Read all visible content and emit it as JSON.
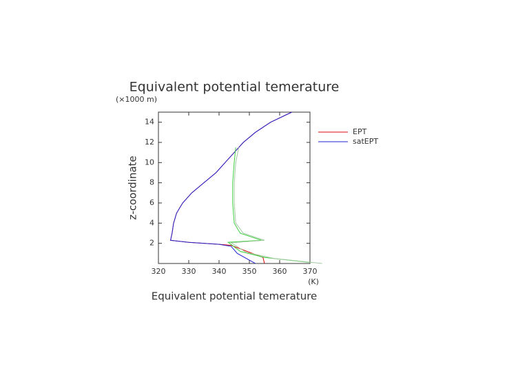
{
  "chart_data": {
    "type": "line",
    "title": "Equivalent potential temerature",
    "x_label": "Equivalent potential temerature",
    "y_label": "z-coordinate",
    "y_unit": "(×1000 m)",
    "x_unit": "(K)",
    "xlim": [
      320,
      370
    ],
    "xticks": [
      320,
      330,
      340,
      350,
      360,
      370
    ],
    "ylim": [
      0,
      15
    ],
    "yticks": [
      2,
      4,
      6,
      8,
      10,
      12,
      14
    ],
    "series": [
      {
        "name": "EPT",
        "color": "#e00000",
        "x": [
          364,
          357,
          352,
          348,
          345,
          342,
          339,
          335,
          331,
          328,
          326,
          325,
          324.5,
          324,
          330,
          340,
          344,
          354.5,
          355
        ],
        "values": [
          15,
          14,
          13,
          12,
          11,
          10,
          9,
          8,
          7,
          6,
          5,
          4,
          3,
          2.3,
          2.1,
          1.9,
          1.8,
          0.6,
          0
        ]
      },
      {
        "name": "satEPT",
        "color": "#2020d0",
        "x": [
          364,
          357,
          352,
          348,
          345,
          342,
          339,
          335,
          331,
          328,
          326,
          325,
          324.5,
          324,
          330,
          340,
          344,
          346,
          352
        ],
        "values": [
          15,
          14,
          13,
          12,
          11,
          10,
          9,
          8,
          7,
          6,
          5,
          4,
          3,
          2.3,
          2.1,
          1.9,
          1.7,
          1,
          0
        ]
      },
      {
        "color": "#40d040",
        "x": [
          345.5,
          345,
          344.5,
          344.5,
          345,
          347,
          354,
          343,
          347,
          355,
          370
        ],
        "values": [
          11.5,
          10,
          8,
          6,
          4,
          3,
          2.3,
          2.1,
          1.2,
          0.6,
          0.1
        ]
      },
      {
        "color": "#a0c8a0",
        "x": [
          346.5,
          345.5,
          345,
          345,
          345.5,
          348,
          355,
          344,
          349,
          358,
          374
        ],
        "values": [
          11.5,
          10,
          8,
          6,
          4,
          3,
          2.3,
          2.05,
          1.1,
          0.5,
          0
        ]
      }
    ]
  }
}
